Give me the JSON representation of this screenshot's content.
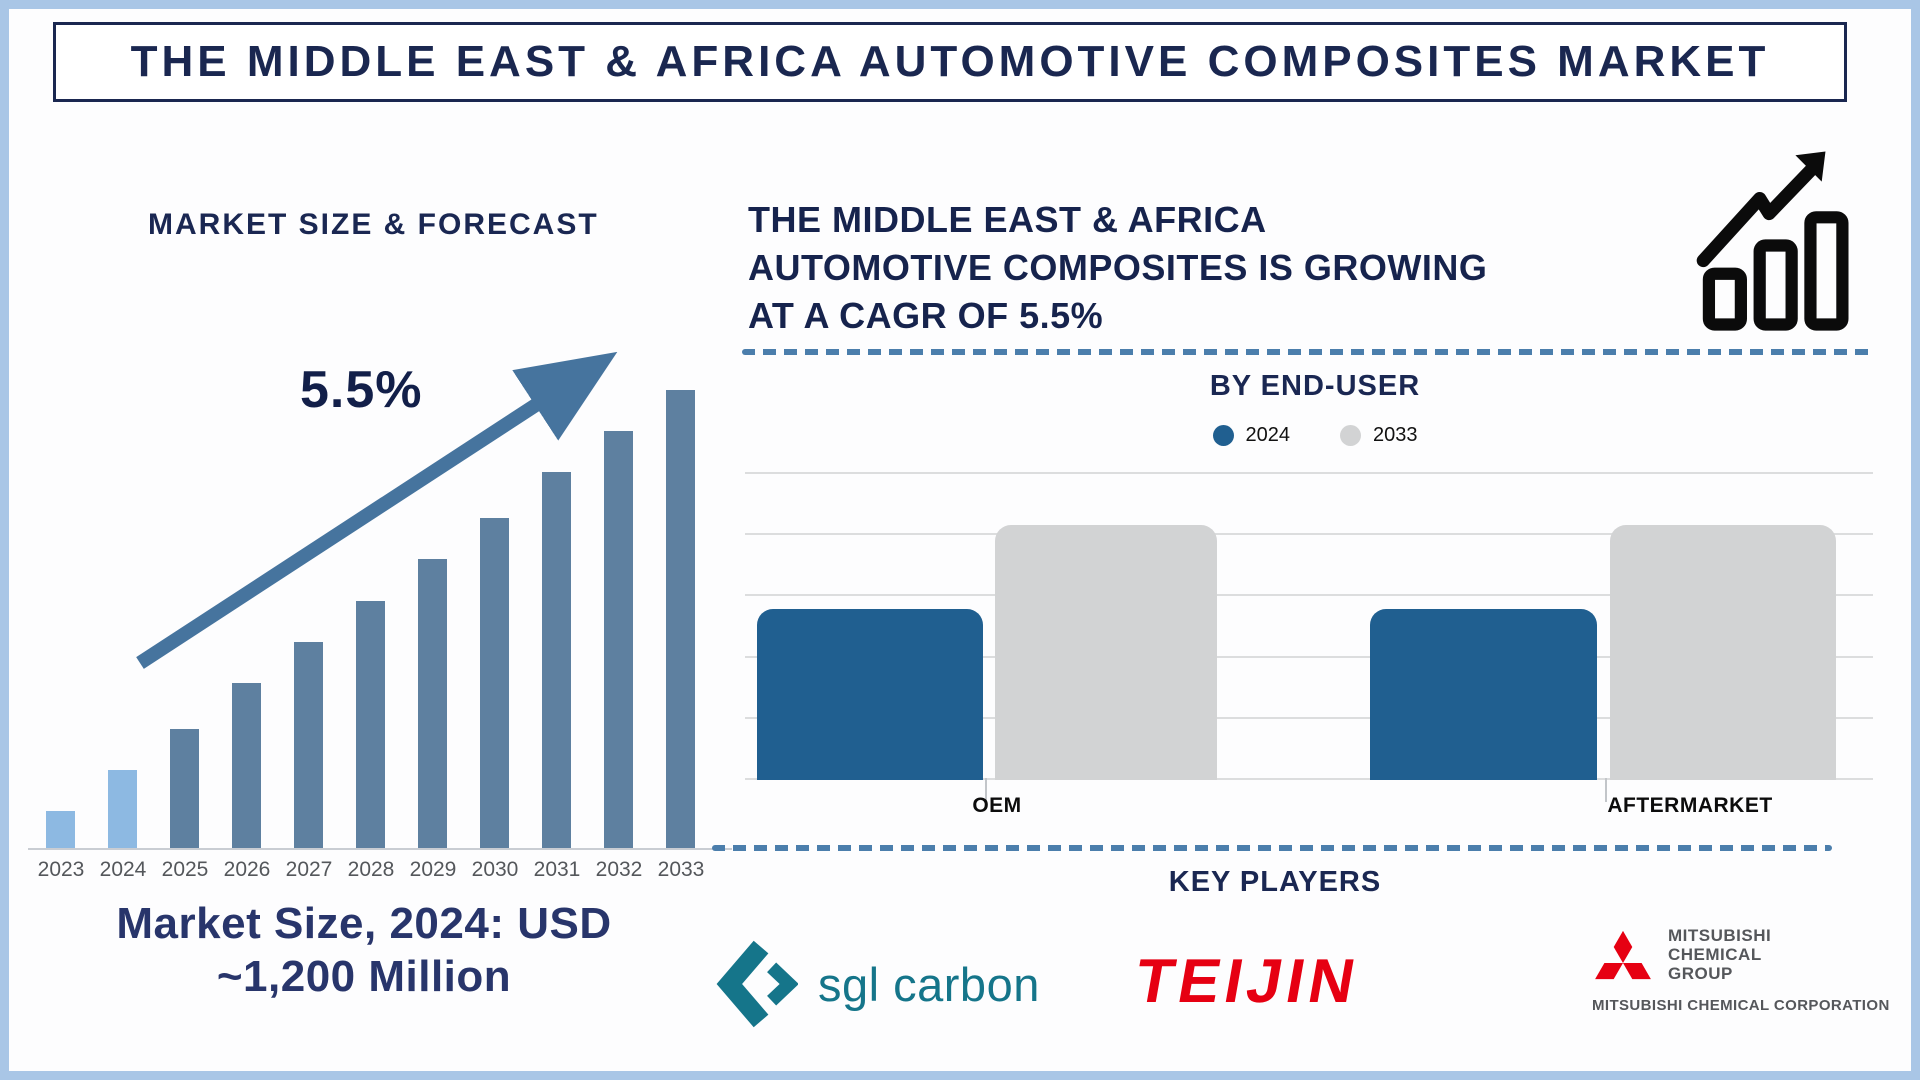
{
  "page_title": "THE MIDDLE EAST & AFRICA AUTOMOTIVE COMPOSITES MARKET",
  "colors": {
    "navy_text": "#1a2750",
    "light_blue_bar": "#8DB9E2",
    "steel_blue_bar": "#5E80A0",
    "arrow_blue": "#46749E",
    "dashed_line_blue": "#4B7EAC",
    "end_user_2024_blue": "#205F90",
    "end_user_2033_gray": "#D2D3D4",
    "sgl_teal": "#15758A",
    "teijin_red": "#E60012",
    "mitsubishi_red": "#E60012",
    "mitsubishi_gray": "#55575B",
    "frame_border_blue": "#A9C6E6"
  },
  "left_section": {
    "chart_title": "MARKET SIZE & FORECAST",
    "cagr_annotation": "5.5%",
    "caption": "Market Size, 2024: USD\n~1,200 Million"
  },
  "right_section": {
    "heading": "THE MIDDLE EAST & AFRICA\nAUTOMOTIVE COMPOSITES IS GROWING\nAT A CAGR OF 5.5%",
    "growth_icon": "growth-chart-icon"
  },
  "end_user_section": {
    "title": "BY END-USER",
    "legend": [
      {
        "label": "2024",
        "color": "#205F90"
      },
      {
        "label": "2033",
        "color": "#D2D3D4"
      }
    ]
  },
  "key_players": {
    "title": "KEY PLAYERS",
    "companies": [
      {
        "name": "sgl carbon"
      },
      {
        "name": "TEIJIN"
      },
      {
        "name": "MITSUBISHI\nCHEMICAL\nGROUP",
        "subtext": "MITSUBISHI CHEMICAL CORPORATION"
      }
    ]
  },
  "chart_data": [
    {
      "id": "market_size_forecast",
      "type": "bar",
      "title": "MARKET SIZE & FORECAST",
      "categories": [
        "2023",
        "2024",
        "2025",
        "2026",
        "2027",
        "2028",
        "2029",
        "2030",
        "2031",
        "2032",
        "2033"
      ],
      "values_relative_pct": [
        8,
        17,
        26,
        36,
        45,
        54,
        63,
        72,
        82,
        91,
        100
      ],
      "annotations": [
        "5.5% CAGR arrow",
        "Market Size, 2024: USD ~1,200 Million"
      ],
      "style_note": "2023 and 2024 bars light blue, 2025-2033 bars steel blue; no y-axis shown",
      "grid": false,
      "legend_position": "none"
    },
    {
      "id": "by_end_user",
      "type": "bar",
      "title": "BY END-USER",
      "categories": [
        "OEM",
        "AFTERMARKET"
      ],
      "series": [
        {
          "name": "2024",
          "color": "#205F90",
          "values_relative_pct": [
            67,
            67
          ]
        },
        {
          "name": "2033",
          "color": "#D2D3D4",
          "values_relative_pct": [
            100,
            100
          ]
        }
      ],
      "grid": "horizontal",
      "legend_position": "top",
      "ylabel": ""
    }
  ]
}
